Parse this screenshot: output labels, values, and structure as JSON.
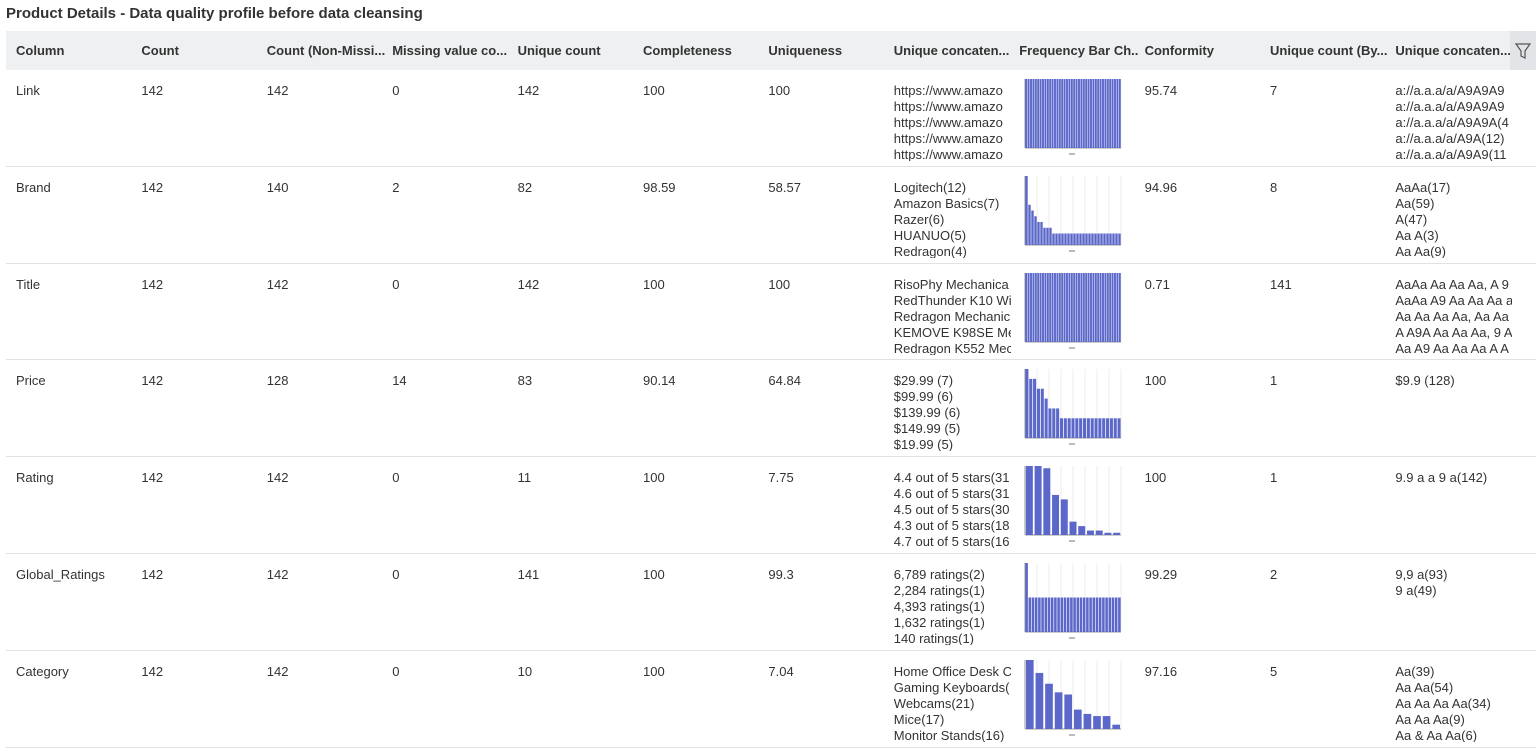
{
  "title": "Product Details - Data quality profile before data cleansing",
  "columns": [
    "Column",
    "Count",
    "Count (Non-Missi...",
    "Missing value co...",
    "Unique count",
    "Completeness",
    "Uniqueness",
    "Unique concaten...",
    "Frequency Bar Ch...",
    "Conformity",
    "Unique count (By...",
    "Unique concaten..."
  ],
  "rows": [
    [
      "Link",
      142,
      142,
      0,
      142,
      100,
      100,
      [
        "https://www.amazo",
        "https://www.amazo",
        "https://www.amazo",
        "https://www.amazo",
        "https://www.amazo"
      ],
      {
        "frequency": [
          1,
          1,
          1,
          1,
          1,
          1,
          1,
          1,
          1,
          1,
          1,
          1,
          1,
          1,
          1,
          1,
          1,
          1,
          1,
          1,
          1,
          1,
          1,
          1,
          1,
          1,
          1,
          1,
          1,
          1,
          1,
          1,
          1,
          1,
          1,
          1,
          1,
          1,
          1,
          1
        ]
      },
      95.74,
      7,
      [
        "a://a.a.a/a/A9A9A9",
        "a://a.a.a/a/A9A9A9",
        "a://a.a.a/a/A9A9A(4",
        "a://a.a.a/a/A9A(12)",
        "a://a.a.a/a/A9A9(11"
      ]
    ],
    [
      "Brand",
      142,
      140,
      2,
      82,
      98.59,
      58.57,
      [
        "Logitech(12)",
        "Amazon Basics(7)",
        "Razer(6)",
        "HUANUO(5)",
        "Redragon(4)"
      ],
      {
        "frequency": [
          12,
          7,
          6,
          5,
          4,
          4,
          3,
          3,
          3,
          2,
          2,
          2,
          2,
          2,
          2,
          2,
          2,
          2,
          2,
          2,
          2,
          2,
          2,
          2,
          2,
          2,
          2,
          2,
          2,
          2,
          2,
          2
        ]
      },
      94.96,
      8,
      [
        "AaAa(17)",
        "Aa(59)",
        "A(47)",
        "Aa A(3)",
        "Aa Aa(9)"
      ]
    ],
    [
      "Title",
      142,
      142,
      0,
      142,
      100,
      100,
      [
        "RisoPhy Mechanica",
        "RedThunder K10 Wi",
        "Redragon Mechanic",
        "KEMOVE K98SE Me",
        "Redragon K552 Mec"
      ],
      {
        "frequency": [
          1,
          1,
          1,
          1,
          1,
          1,
          1,
          1,
          1,
          1,
          1,
          1,
          1,
          1,
          1,
          1,
          1,
          1,
          1,
          1,
          1,
          1,
          1,
          1,
          1,
          1,
          1,
          1,
          1,
          1,
          1,
          1,
          1,
          1,
          1,
          1,
          1,
          1,
          1,
          1
        ]
      },
      0.71,
      141,
      [
        "AaAa Aa Aa Aa, A 9",
        "AaAa A9 Aa Aa Aa a",
        "Aa Aa Aa Aa, Aa Aa",
        "A A9A Aa Aa Aa, 9 A",
        "Aa A9 Aa Aa Aa A A"
      ]
    ],
    [
      "Price",
      142,
      128,
      14,
      83,
      90.14,
      64.84,
      [
        "$29.99 (7)",
        "$99.99 (6)",
        "$139.99 (6)",
        "$149.99 (5)",
        "$19.99 (5)"
      ],
      {
        "frequency": [
          7,
          6,
          6,
          5,
          5,
          4,
          3,
          3,
          3,
          2,
          2,
          2,
          2,
          2,
          2,
          2,
          2,
          2,
          2,
          2,
          2,
          2,
          2,
          2,
          2
        ]
      },
      100,
      1,
      [
        "$9.9 (128)"
      ]
    ],
    [
      "Rating",
      142,
      142,
      0,
      11,
      100,
      7.75,
      [
        "4.4 out of 5 stars(31",
        "4.6 out of 5 stars(31",
        "4.5 out of 5 stars(30",
        "4.3 out of 5 stars(18",
        "4.7 out of 5 stars(16"
      ],
      {
        "frequency": [
          31,
          31,
          30,
          18,
          16,
          6,
          4,
          2,
          2,
          1,
          1
        ]
      },
      100,
      1,
      [
        "9.9 a a 9 a(142)"
      ]
    ],
    [
      "Global_Ratings",
      142,
      142,
      0,
      141,
      100,
      99.3,
      [
        "6,789 ratings(2)",
        "2,284 ratings(1)",
        "4,393 ratings(1)",
        "1,632 ratings(1)",
        "140 ratings(1)"
      ],
      {
        "frequency": [
          2,
          1,
          1,
          1,
          1,
          1,
          1,
          1,
          1,
          1,
          1,
          1,
          1,
          1,
          1,
          1,
          1,
          1,
          1,
          1,
          1,
          1,
          1,
          1,
          1,
          1,
          1,
          1,
          1,
          1
        ]
      },
      99.29,
      2,
      [
        "9,9 a(93)",
        "9 a(49)"
      ]
    ],
    [
      "Category",
      142,
      142,
      0,
      10,
      100,
      7.04,
      [
        "Home Office Desk C",
        "Gaming Keyboards(",
        "Webcams(21)",
        "Mice(17)",
        "Monitor Stands(16)"
      ],
      {
        "frequency": [
          32,
          26,
          21,
          17,
          16,
          9,
          7,
          6,
          6,
          2
        ]
      },
      97.16,
      5,
      [
        "Aa(39)",
        "Aa Aa(54)",
        "Aa Aa Aa Aa(34)",
        "Aa Aa Aa(9)",
        "Aa & Aa Aa(6)"
      ]
    ]
  ]
}
